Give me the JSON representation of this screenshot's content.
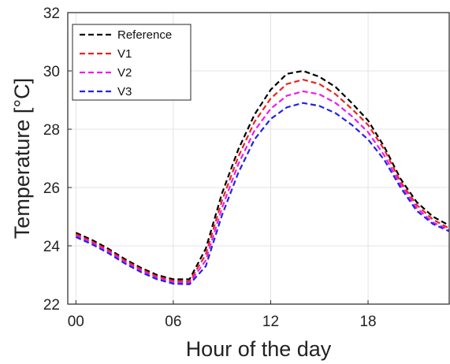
{
  "chart_data": {
    "type": "line",
    "xlabel": "Hour of the day",
    "ylabel": "Temperature [°C]",
    "xlim": [
      -0.5,
      23
    ],
    "ylim": [
      22,
      32
    ],
    "x_ticks": [
      0,
      6,
      12,
      18
    ],
    "x_tick_labels": [
      "00",
      "06",
      "12",
      "18"
    ],
    "y_ticks": [
      22,
      24,
      26,
      28,
      30,
      32
    ],
    "y_tick_labels": [
      "22",
      "24",
      "26",
      "28",
      "30",
      "32"
    ],
    "grid": true,
    "legend_position": "top-left",
    "x": [
      0,
      1,
      2,
      3,
      4,
      5,
      6,
      7,
      8,
      9,
      10,
      11,
      12,
      13,
      14,
      15,
      16,
      17,
      18,
      19,
      20,
      21,
      22,
      23
    ],
    "series": [
      {
        "name": "Reference",
        "color": "#000000",
        "values": [
          24.45,
          24.2,
          23.9,
          23.55,
          23.25,
          23.0,
          22.85,
          22.85,
          23.9,
          25.8,
          27.3,
          28.5,
          29.35,
          29.9,
          30.0,
          29.8,
          29.45,
          28.9,
          28.3,
          27.4,
          26.3,
          25.5,
          25.0,
          24.7
        ]
      },
      {
        "name": "V1",
        "color": "#e8251f",
        "values": [
          24.4,
          24.15,
          23.85,
          23.5,
          23.2,
          22.95,
          22.8,
          22.78,
          23.7,
          25.55,
          27.05,
          28.25,
          29.05,
          29.55,
          29.7,
          29.55,
          29.2,
          28.7,
          28.15,
          27.3,
          26.2,
          25.4,
          24.9,
          24.6
        ]
      },
      {
        "name": "V2",
        "color": "#ee1aee",
        "values": [
          24.35,
          24.1,
          23.8,
          23.45,
          23.15,
          22.9,
          22.75,
          22.73,
          23.5,
          25.3,
          26.8,
          27.95,
          28.7,
          29.15,
          29.3,
          29.2,
          28.9,
          28.45,
          27.9,
          27.1,
          26.1,
          25.3,
          24.8,
          24.55
        ]
      },
      {
        "name": "V3",
        "color": "#2323e0",
        "values": [
          24.3,
          24.05,
          23.75,
          23.4,
          23.1,
          22.85,
          22.7,
          22.68,
          23.3,
          25.05,
          26.5,
          27.65,
          28.35,
          28.75,
          28.9,
          28.8,
          28.55,
          28.15,
          27.65,
          26.95,
          26.0,
          25.2,
          24.75,
          24.5
        ]
      }
    ]
  }
}
